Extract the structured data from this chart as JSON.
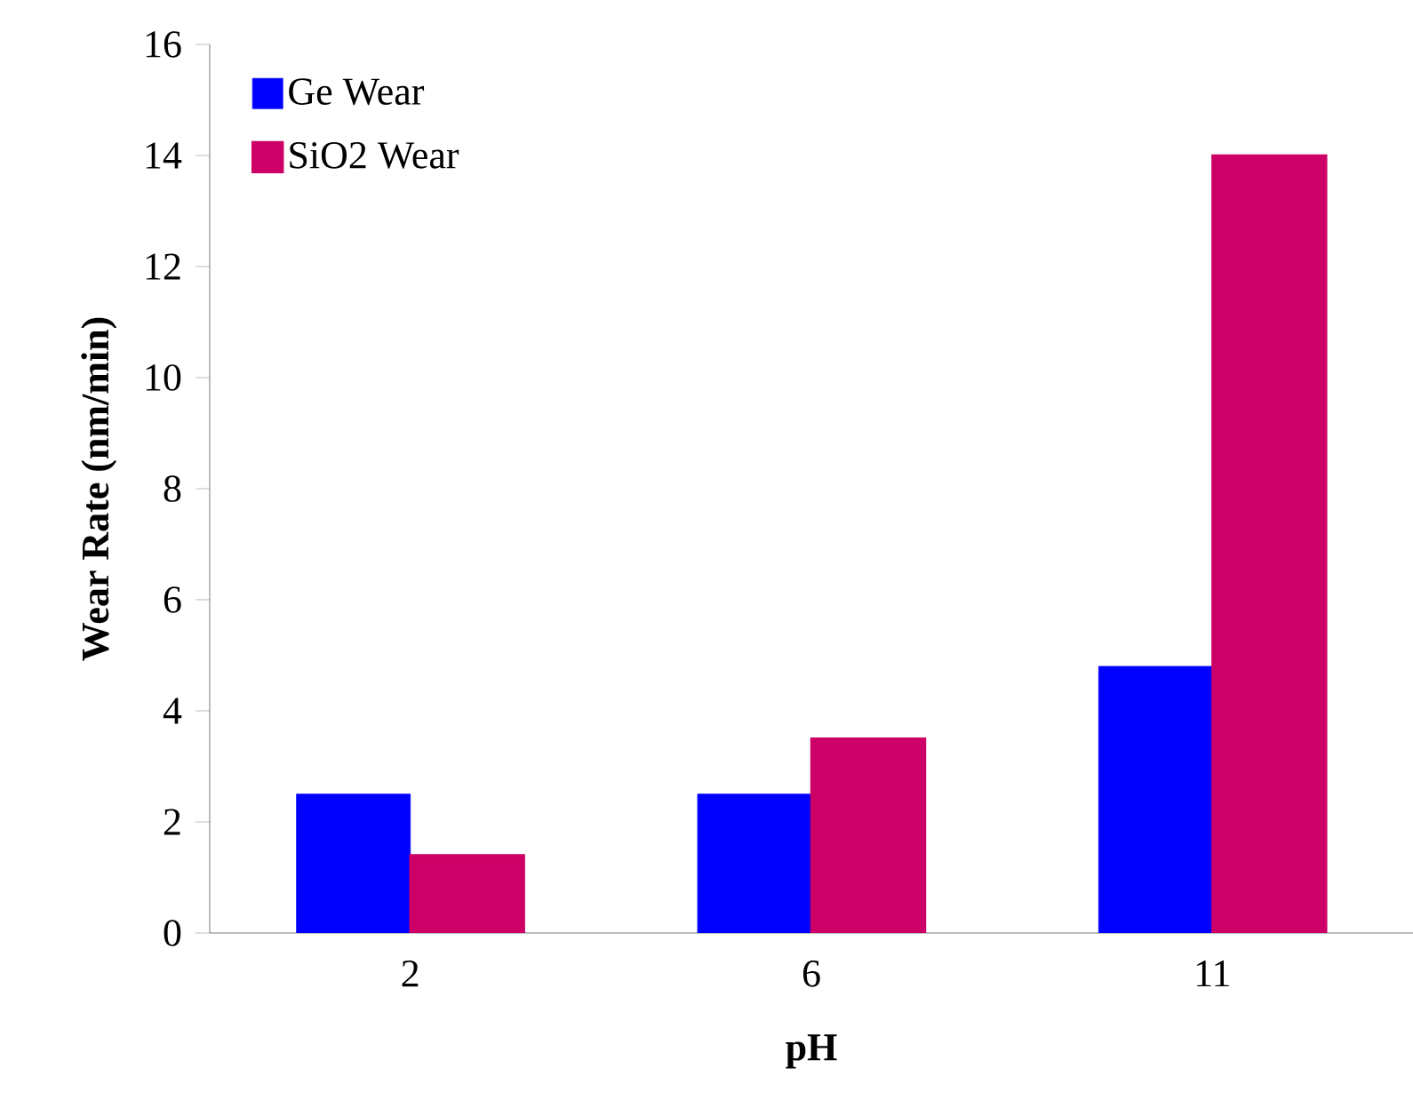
{
  "chart_data": {
    "type": "bar",
    "xlabel": "pH",
    "ylabel": "Wear Rate (nm/min)",
    "categories": [
      "2",
      "6",
      "11"
    ],
    "series": [
      {
        "name": "Ge Wear",
        "color": "#0000ff",
        "values": [
          2.5,
          2.5,
          4.8
        ]
      },
      {
        "name": "SiO2 Wear",
        "color": "#cc0066",
        "values": [
          1.4,
          3.5,
          14.0
        ]
      }
    ],
    "ylim": [
      0,
      16
    ],
    "yticks": [
      0,
      2,
      4,
      6,
      8,
      10,
      12,
      14,
      16
    ],
    "grid": false,
    "legend": "top left"
  }
}
